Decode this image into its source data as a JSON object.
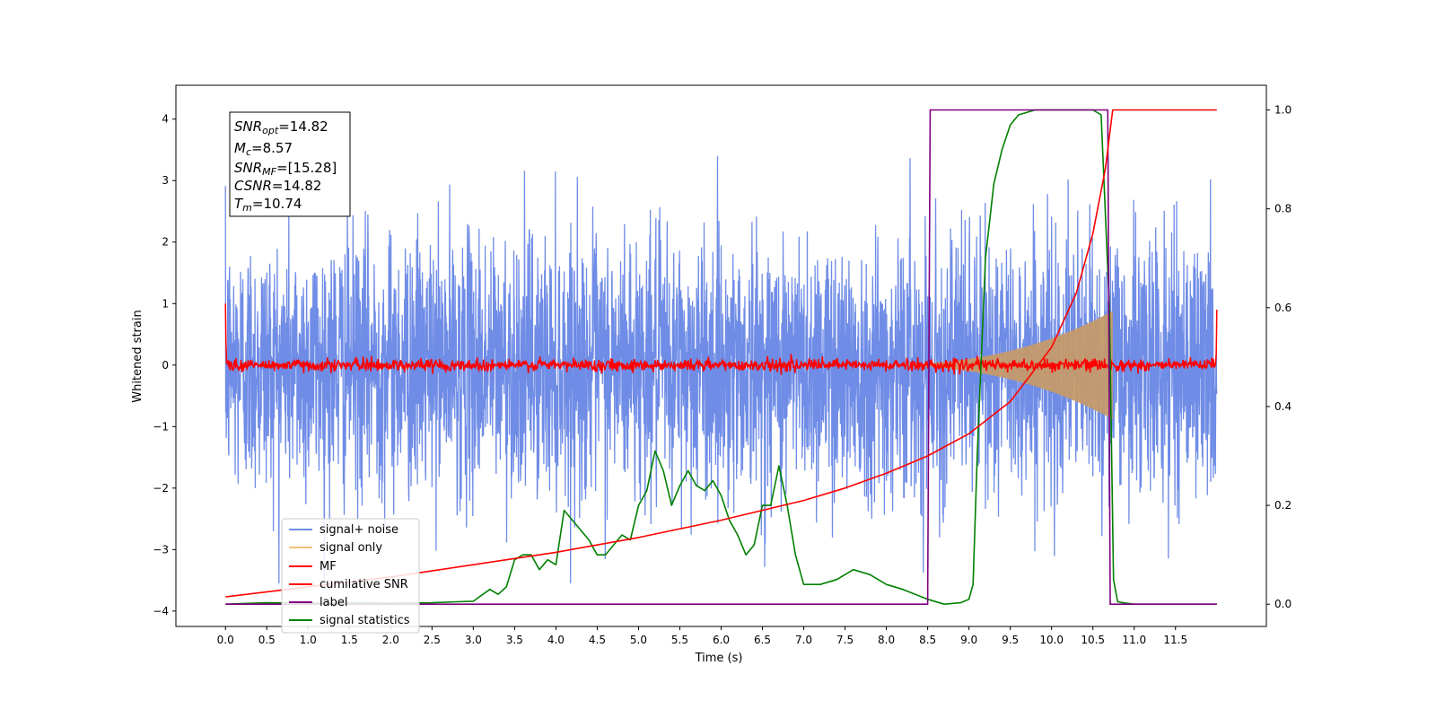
{
  "chart_data": {
    "type": "line",
    "xlabel": "Time (s)",
    "ylabel": "Whitened strain",
    "xlim": [
      -0.6,
      12.6
    ],
    "ylim": [
      -4.25,
      4.55
    ],
    "ylim_right": [
      -0.045,
      1.05
    ],
    "x_ticks": [
      "0.0",
      "0.5",
      "1.0",
      "1.5",
      "2.0",
      "2.5",
      "3.0",
      "3.5",
      "4.0",
      "4.5",
      "5.0",
      "5.5",
      "6.0",
      "6.5",
      "7.0",
      "7.5",
      "8.0",
      "8.5",
      "9.0",
      "9.5",
      "10.0",
      "10.5",
      "11.0",
      "11.5"
    ],
    "y_ticks": [
      "4",
      "3",
      "2",
      "1",
      "0",
      "−1",
      "−2",
      "−3",
      "−4"
    ],
    "y_ticks_right": [
      "1.0",
      "0.8",
      "0.6",
      "0.4",
      "0.2",
      "0.0"
    ],
    "legend": {
      "position": "lower-left",
      "entries": [
        "signal+ noise",
        "signal only",
        "MF",
        "cumilative SNR",
        "label",
        "signal statistics"
      ]
    },
    "annotation": {
      "snr_opt": {
        "sym": "SNR",
        "sub": "opt",
        "value": "=14.82"
      },
      "mc": {
        "sym": "M",
        "sub": "c",
        "value": "=8.57"
      },
      "snr_mf": {
        "sym": "SNR",
        "sub": "MF",
        "value": "=[15.28]"
      },
      "csnr": {
        "sym": "CSNR",
        "value": "=14.82"
      },
      "tm": {
        "sym": "T",
        "sub": "m",
        "value": "=10.74"
      }
    },
    "series": [
      {
        "legend": "signal+ noise",
        "color": "#6f8ce6",
        "axis": "left",
        "noise_amplitude_max": 3.4,
        "x_range": [
          0.0,
          12.0
        ]
      },
      {
        "legend": "signal only",
        "color": "#f6c27a",
        "axis": "left",
        "chirp_start": 8.5,
        "chirp_end": 10.74,
        "peak_amplitude": 0.8
      },
      {
        "legend": "MF",
        "color": "#ff0000",
        "axis": "left",
        "baseline": 0.0,
        "noise_amplitude": 0.1
      },
      {
        "legend": "cumilative SNR",
        "color": "#ff0000",
        "axis": "right",
        "x": [
          0.0,
          1.0,
          2.0,
          3.0,
          4.0,
          5.0,
          6.0,
          7.0,
          7.5,
          8.0,
          8.5,
          9.0,
          9.5,
          10.0,
          10.3,
          10.5,
          10.65,
          10.74,
          12.0
        ],
        "y": [
          0.015,
          0.035,
          0.055,
          0.08,
          0.105,
          0.135,
          0.17,
          0.21,
          0.235,
          0.265,
          0.3,
          0.345,
          0.41,
          0.52,
          0.63,
          0.75,
          0.88,
          1.0,
          1.0
        ]
      },
      {
        "legend": "label",
        "color": "#800080",
        "axis": "right",
        "x": [
          0.0,
          8.5,
          8.53,
          10.68,
          10.71,
          12.0
        ],
        "y": [
          0.0,
          0.0,
          1.0,
          1.0,
          0.0,
          0.0
        ]
      },
      {
        "legend": "signal statistics",
        "color": "#008000",
        "axis": "right",
        "x": [
          0.0,
          0.5,
          1.0,
          1.5,
          2.0,
          2.5,
          2.8,
          3.0,
          3.2,
          3.3,
          3.4,
          3.5,
          3.6,
          3.7,
          3.8,
          3.9,
          4.0,
          4.1,
          4.2,
          4.3,
          4.4,
          4.5,
          4.6,
          4.7,
          4.8,
          4.9,
          5.0,
          5.1,
          5.2,
          5.3,
          5.4,
          5.5,
          5.6,
          5.7,
          5.8,
          5.9,
          6.0,
          6.1,
          6.2,
          6.3,
          6.4,
          6.5,
          6.6,
          6.7,
          6.8,
          6.9,
          7.0,
          7.2,
          7.4,
          7.6,
          7.8,
          8.0,
          8.2,
          8.5,
          8.7,
          8.9,
          9.0,
          9.05,
          9.1,
          9.15,
          9.2,
          9.3,
          9.4,
          9.5,
          9.6,
          9.8,
          10.0,
          10.2,
          10.5,
          10.6,
          10.7,
          10.75,
          10.8,
          10.9,
          11.0,
          12.0
        ],
        "y": [
          0.0,
          0.003,
          0.002,
          0.003,
          0.002,
          0.003,
          0.005,
          0.006,
          0.03,
          0.02,
          0.035,
          0.09,
          0.1,
          0.1,
          0.07,
          0.09,
          0.08,
          0.19,
          0.17,
          0.15,
          0.13,
          0.1,
          0.1,
          0.12,
          0.14,
          0.13,
          0.2,
          0.23,
          0.31,
          0.27,
          0.2,
          0.24,
          0.27,
          0.24,
          0.23,
          0.25,
          0.22,
          0.17,
          0.14,
          0.1,
          0.12,
          0.2,
          0.2,
          0.28,
          0.2,
          0.1,
          0.04,
          0.04,
          0.05,
          0.07,
          0.06,
          0.04,
          0.03,
          0.01,
          0.0,
          0.003,
          0.01,
          0.04,
          0.3,
          0.5,
          0.7,
          0.85,
          0.92,
          0.97,
          0.99,
          1.0,
          1.0,
          1.0,
          1.0,
          0.99,
          0.6,
          0.05,
          0.005,
          0.002,
          0.0,
          0.0
        ]
      }
    ]
  }
}
